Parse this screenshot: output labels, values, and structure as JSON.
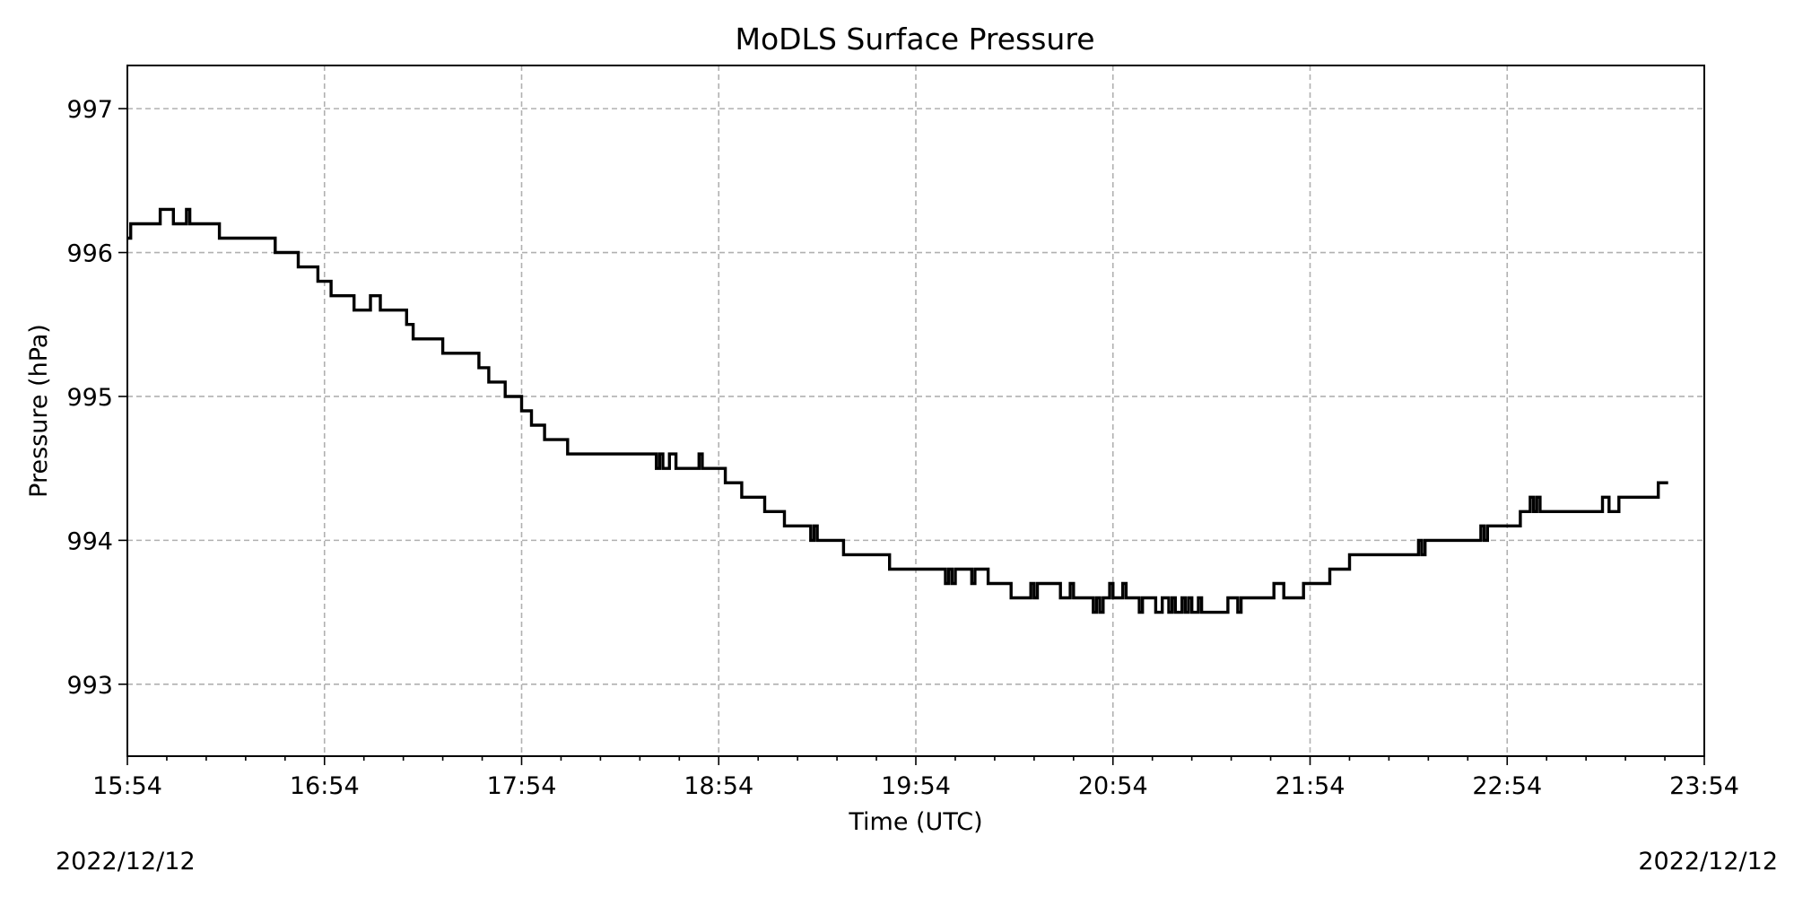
{
  "chart_data": {
    "type": "line",
    "title": "MoDLS Surface Pressure",
    "xlabel": "Time (UTC)",
    "ylabel": "Pressure (hPa)",
    "date_left": "2022/12/12",
    "date_right": "2022/12/12",
    "x_ticks": [
      "15:54",
      "16:54",
      "17:54",
      "18:54",
      "19:54",
      "20:54",
      "21:54",
      "22:54",
      "23:54"
    ],
    "x_range": [
      "15:54",
      "23:54"
    ],
    "y_ticks": [
      993,
      994,
      995,
      996,
      997
    ],
    "ylim": [
      992.5,
      997.3
    ],
    "grid": true,
    "line_color": "#000000",
    "series": [
      {
        "step": "post",
        "points": [
          [
            "15:54",
            996.1
          ],
          [
            "15:55",
            996.2
          ],
          [
            "16:04",
            996.3
          ],
          [
            "16:08",
            996.2
          ],
          [
            "16:12",
            996.3
          ],
          [
            "16:13",
            996.2
          ],
          [
            "16:22",
            996.1
          ],
          [
            "16:39",
            996.0
          ],
          [
            "16:46",
            995.9
          ],
          [
            "16:52",
            995.8
          ],
          [
            "16:56",
            995.7
          ],
          [
            "17:03",
            995.6
          ],
          [
            "17:08",
            995.7
          ],
          [
            "17:11",
            995.6
          ],
          [
            "17:19",
            995.5
          ],
          [
            "17:21",
            995.4
          ],
          [
            "17:30",
            995.3
          ],
          [
            "17:41",
            995.2
          ],
          [
            "17:44",
            995.1
          ],
          [
            "17:49",
            995.0
          ],
          [
            "17:54",
            994.9
          ],
          [
            "17:57",
            994.8
          ],
          [
            "18:01",
            994.7
          ],
          [
            "18:08",
            994.6
          ],
          [
            "18:35",
            994.5
          ],
          [
            "18:36",
            994.6
          ],
          [
            "18:37",
            994.5
          ],
          [
            "18:39",
            994.6
          ],
          [
            "18:41",
            994.5
          ],
          [
            "18:48",
            994.6
          ],
          [
            "18:49",
            994.5
          ],
          [
            "18:56",
            994.4
          ],
          [
            "19:01",
            994.3
          ],
          [
            "19:08",
            994.2
          ],
          [
            "19:14",
            994.1
          ],
          [
            "19:22",
            994.0
          ],
          [
            "19:23",
            994.1
          ],
          [
            "19:24",
            994.0
          ],
          [
            "19:32",
            993.9
          ],
          [
            "19:46",
            993.8
          ],
          [
            "20:03",
            993.7
          ],
          [
            "20:04",
            993.8
          ],
          [
            "20:05",
            993.7
          ],
          [
            "20:06",
            993.8
          ],
          [
            "20:11",
            993.7
          ],
          [
            "20:12",
            993.8
          ],
          [
            "20:16",
            993.7
          ],
          [
            "20:23",
            993.6
          ],
          [
            "20:29",
            993.7
          ],
          [
            "20:30",
            993.6
          ],
          [
            "20:31",
            993.7
          ],
          [
            "20:38",
            993.6
          ],
          [
            "20:41",
            993.7
          ],
          [
            "20:42",
            993.6
          ],
          [
            "20:48",
            993.5
          ],
          [
            "20:49",
            993.6
          ],
          [
            "20:50",
            993.5
          ],
          [
            "20:51",
            993.6
          ],
          [
            "20:53",
            993.7
          ],
          [
            "20:54",
            993.6
          ],
          [
            "20:57",
            993.7
          ],
          [
            "20:58",
            993.6
          ],
          [
            "21:02",
            993.5
          ],
          [
            "21:03",
            993.6
          ],
          [
            "21:07",
            993.5
          ],
          [
            "21:09",
            993.6
          ],
          [
            "21:11",
            993.5
          ],
          [
            "21:12",
            993.6
          ],
          [
            "21:13",
            993.5
          ],
          [
            "21:15",
            993.6
          ],
          [
            "21:16",
            993.5
          ],
          [
            "21:17",
            993.6
          ],
          [
            "21:18",
            993.5
          ],
          [
            "21:20",
            993.6
          ],
          [
            "21:21",
            993.5
          ],
          [
            "21:29",
            993.6
          ],
          [
            "21:32",
            993.5
          ],
          [
            "21:33",
            993.6
          ],
          [
            "21:43",
            993.7
          ],
          [
            "21:46",
            993.6
          ],
          [
            "21:52",
            993.7
          ],
          [
            "22:00",
            993.8
          ],
          [
            "22:06",
            993.9
          ],
          [
            "22:27",
            994.0
          ],
          [
            "22:28",
            993.9
          ],
          [
            "22:29",
            994.0
          ],
          [
            "22:46",
            994.1
          ],
          [
            "22:47",
            994.0
          ],
          [
            "22:48",
            994.1
          ],
          [
            "22:58",
            994.2
          ],
          [
            "23:01",
            994.3
          ],
          [
            "23:02",
            994.2
          ],
          [
            "23:03",
            994.3
          ],
          [
            "23:04",
            994.2
          ],
          [
            "23:23",
            994.3
          ],
          [
            "23:25",
            994.2
          ],
          [
            "23:28",
            994.3
          ],
          [
            "23:40",
            994.4
          ],
          [
            "23:43",
            994.4
          ]
        ]
      }
    ]
  }
}
